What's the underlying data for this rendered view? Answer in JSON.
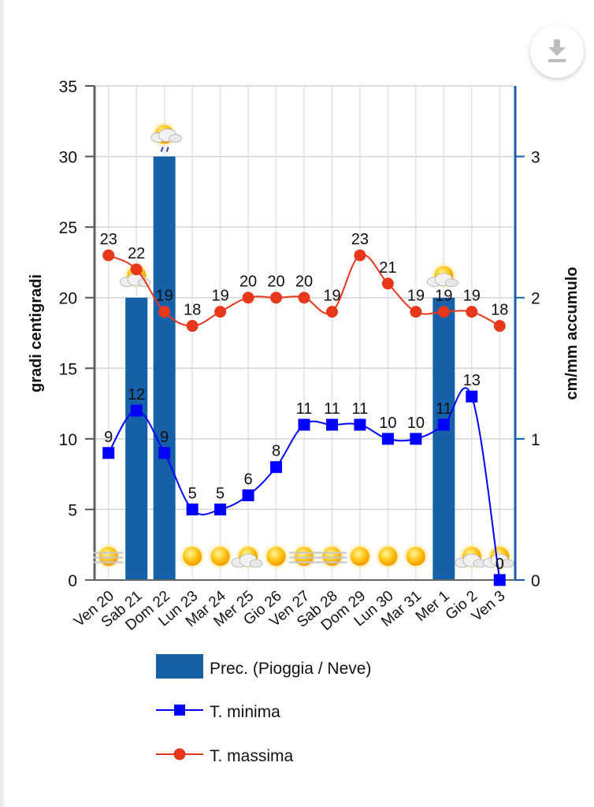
{
  "toolbar": {
    "download_icon": "download-icon"
  },
  "chart_data": {
    "type": "bar+line",
    "title": "",
    "categories": [
      "Ven 20",
      "Sab 21",
      "Dom 22",
      "Lun 23",
      "Mar 24",
      "Mer 25",
      "Gio 26",
      "Ven 27",
      "Sab 28",
      "Dom 29",
      "Lun 30",
      "Mar 31",
      "Mer 1",
      "Gio 2",
      "Ven 3"
    ],
    "ylabel": "gradi centigradi",
    "y2label": "cm/mm accumulo",
    "ylim": [
      0,
      35
    ],
    "yticks": [
      0,
      5,
      10,
      15,
      20,
      25,
      30,
      35
    ],
    "y2lim": [
      0,
      3.5
    ],
    "y2ticks": [
      0,
      1,
      2,
      3
    ],
    "grid": true,
    "legend_position": "bottom",
    "series": [
      {
        "name": "Prec. (Pioggia / Neve)",
        "type": "bar",
        "axis": "right",
        "color": "#1660a8",
        "values": [
          0,
          2,
          3,
          0,
          0,
          0,
          0,
          0,
          0,
          0,
          0,
          0,
          2,
          0,
          0
        ]
      },
      {
        "name": "T. minima",
        "type": "line",
        "axis": "left",
        "color": "#0000ff",
        "marker": "square",
        "values": [
          9,
          12,
          9,
          5,
          5,
          6,
          8,
          11,
          11,
          11,
          10,
          10,
          11,
          13,
          0
        ]
      },
      {
        "name": "T. massima",
        "type": "line",
        "axis": "left",
        "color": "#e8381c",
        "marker": "circle",
        "values": [
          23,
          22,
          19,
          18,
          19,
          20,
          20,
          20,
          19,
          23,
          21,
          19,
          19,
          19,
          18
        ]
      }
    ],
    "weather_icons": [
      "fog-sun",
      "sun-cloud",
      "sun-cloud-rain",
      "sun",
      "sun",
      "sun-cloud",
      "sun",
      "sun-fog",
      "sun-fog",
      "sun",
      "sun",
      "sun",
      "sun-cloud",
      "sun-cloud",
      "sun-cloud"
    ]
  }
}
